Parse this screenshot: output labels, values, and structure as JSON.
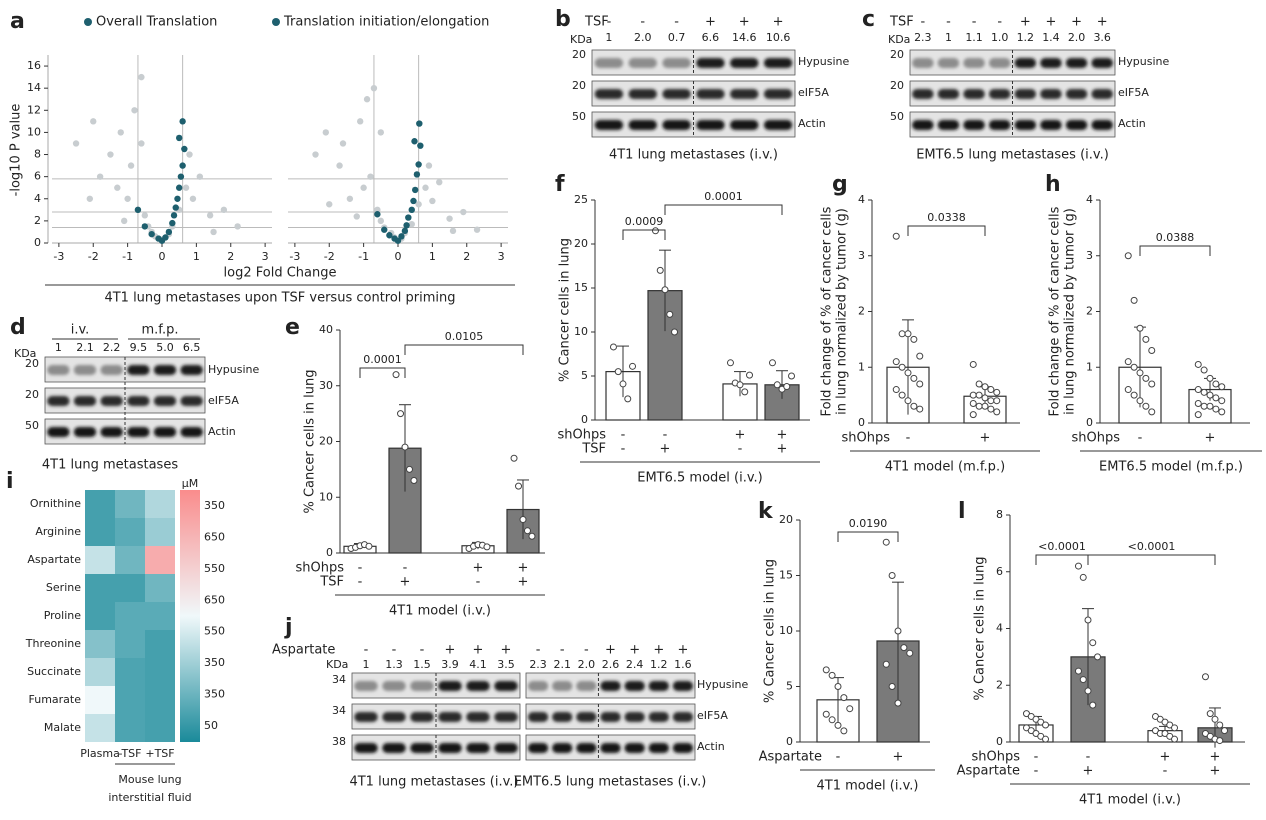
{
  "panel_a": {
    "label": "a",
    "legend": [
      "Overall Translation",
      "Translation initiation/elongation"
    ],
    "colors": [
      "#1e5f6e",
      "#c8cdd0"
    ],
    "ylabel": "-log10 P value",
    "xlabel": "log2 Fold Change",
    "caption": "4T1 lung metastases upon TSF versus control priming",
    "xlim": [
      -3.2,
      3.2
    ],
    "ylim": [
      0,
      17
    ],
    "xticks": [
      -3,
      -2,
      -1,
      0,
      1,
      2,
      3
    ],
    "yticks": [
      0,
      2,
      4,
      6,
      8,
      10,
      12,
      14,
      16
    ],
    "threshold_x": [
      -0.7,
      0.6
    ],
    "threshold_y": [
      5.8,
      2.8,
      1.4
    ],
    "plots": [
      {
        "gray": {
          "x": [
            -2.5,
            -2,
            -1.8,
            -1.5,
            -1.3,
            -1.2,
            -1,
            -0.9,
            -0.8,
            -0.7,
            -0.6,
            -0.5,
            -0.4,
            -0.3,
            -0.2,
            0,
            0.2,
            0.3,
            0.5,
            0.7,
            0.9,
            1.1,
            1.4,
            1.8,
            2.2,
            -1.1,
            -0.6,
            0.8,
            -2.1,
            1.5
          ],
          "y": [
            9,
            11,
            6,
            8,
            5,
            10,
            4,
            7,
            12,
            3,
            15,
            2.5,
            1.5,
            1,
            0.6,
            0.3,
            0.8,
            1.5,
            3,
            5,
            4,
            6,
            2.5,
            3,
            1.5,
            2,
            9,
            8,
            4,
            1
          ]
        },
        "teal": {
          "x": [
            -0.5,
            -0.3,
            -0.1,
            0,
            0.1,
            0.2,
            0.3,
            0.35,
            0.4,
            0.45,
            0.5,
            0.55,
            0.6,
            0.65,
            0.6,
            0.5,
            -0.7
          ],
          "y": [
            1.5,
            0.8,
            0.4,
            0.2,
            0.5,
            1,
            1.8,
            2.5,
            3.2,
            4,
            5,
            6,
            7,
            8.5,
            11,
            9.5,
            3
          ]
        }
      },
      {
        "gray": {
          "x": [
            -2.4,
            -2.1,
            -1.7,
            -1.6,
            -1.4,
            -1.1,
            -1,
            -0.8,
            -0.9,
            -0.6,
            -0.7,
            -0.5,
            -0.4,
            -0.2,
            -0.1,
            0.1,
            0.2,
            0.4,
            0.6,
            0.8,
            1,
            1.2,
            1.5,
            1.9,
            2.3,
            -1.2,
            -0.5,
            0.9,
            -2,
            1.6
          ],
          "y": [
            8,
            10,
            7,
            9,
            4,
            11,
            5,
            6,
            13,
            3,
            14,
            2,
            1.4,
            0.9,
            0.5,
            0.4,
            0.9,
            1.7,
            3.5,
            5,
            3.8,
            5.5,
            2.2,
            2.8,
            1.2,
            2.4,
            10,
            7,
            3.5,
            1.1
          ]
        },
        "teal": {
          "x": [
            -0.4,
            -0.25,
            -0.1,
            0,
            0.1,
            0.2,
            0.25,
            0.3,
            0.4,
            0.45,
            0.5,
            0.55,
            0.6,
            0.65,
            0.62,
            0.48,
            -0.6
          ],
          "y": [
            1.2,
            0.7,
            0.4,
            0.2,
            0.6,
            1.1,
            1.6,
            2.3,
            3,
            3.8,
            4.8,
            6.2,
            7.1,
            8.8,
            10.8,
            9.2,
            2.6
          ]
        }
      }
    ]
  },
  "panel_b": {
    "label": "b",
    "treatment": "TSF",
    "kda": "KDa",
    "signs": [
      "-",
      "-",
      "-",
      "+",
      "+",
      "+"
    ],
    "values": [
      "1",
      "2.0",
      "0.7",
      "6.6",
      "14.6",
      "10.6"
    ],
    "markers": [
      "20",
      "20",
      "50"
    ],
    "bands": [
      "Hypusine",
      "eIF5A",
      "Actin"
    ],
    "caption": "4T1 lung metastases (i.v.)"
  },
  "panel_c": {
    "label": "c",
    "treatment": "TSF",
    "kda": "KDa",
    "signs": [
      "-",
      "-",
      "-",
      "-",
      "+",
      "+",
      "+",
      "+"
    ],
    "values": [
      "2.3",
      "1",
      "1.1",
      "1.0",
      "1.2",
      "1.4",
      "2.0",
      "3.6"
    ],
    "markers": [
      "20",
      "20",
      "50"
    ],
    "bands": [
      "Hypusine",
      "eIF5A",
      "Actin"
    ],
    "caption": "EMT6.5 lung metastases (i.v.)"
  },
  "panel_d": {
    "label": "d",
    "groups": [
      "i.v.",
      "m.f.p."
    ],
    "kda": "KDa",
    "values": [
      "1",
      "2.1",
      "2.2",
      "9.5",
      "5.0",
      "6.5"
    ],
    "markers": [
      "20",
      "20",
      "50"
    ],
    "bands": [
      "Hypusine",
      "eIF5A",
      "Actin"
    ],
    "caption": "4T1 lung metastases"
  },
  "panel_e": {
    "label": "e",
    "ylabel": [
      "% Cancer cells in lung"
    ],
    "ylim": [
      0,
      40
    ],
    "yticks": [
      0,
      10,
      20,
      30,
      40
    ],
    "values": [
      1.2,
      18.8,
      1.3,
      7.8
    ],
    "errors": [
      0.5,
      7.8,
      0.6,
      5.3
    ],
    "fills": [
      "#ffffff",
      "#7a7a7a",
      "#ffffff",
      "#7a7a7a"
    ],
    "points": [
      [
        0.8,
        1,
        1.3,
        1.5,
        1.2
      ],
      [
        32,
        25,
        19,
        15,
        13
      ],
      [
        0.8,
        1.2,
        1.5,
        1.4,
        1.1
      ],
      [
        17,
        12,
        6,
        4,
        3
      ]
    ],
    "annotations": [
      "0.0001",
      "0.0105"
    ],
    "rows": [
      {
        "name": "shOhps",
        "signs": [
          "-",
          "-",
          "+",
          "+"
        ]
      },
      {
        "name": "TSF",
        "signs": [
          "-",
          "+",
          "-",
          "+"
        ]
      }
    ],
    "caption": "4T1 model (i.v.)"
  },
  "panel_f": {
    "label": "f",
    "ylabel": [
      "% Cancer cells in lung"
    ],
    "ylim": [
      0,
      25
    ],
    "yticks": [
      0,
      5,
      10,
      15,
      20,
      25
    ],
    "values": [
      5.5,
      14.7,
      4.1,
      4.0
    ],
    "errors": [
      2.9,
      4.6,
      1.4,
      1.6
    ],
    "fills": [
      "#ffffff",
      "#7a7a7a",
      "#ffffff",
      "#7a7a7a"
    ],
    "points": [
      [
        8.3,
        5.5,
        4.1,
        2.4,
        6.1
      ],
      [
        21.5,
        17,
        14.8,
        12,
        10
      ],
      [
        6.5,
        4.2,
        4.0,
        3.2,
        5.1
      ],
      [
        6.5,
        4.0,
        3.5,
        3.8,
        5.0
      ]
    ],
    "annotations": [
      "0.0009",
      "0.0001"
    ],
    "rows": [
      {
        "name": "shOhps",
        "signs": [
          "-",
          "-",
          "+",
          "+"
        ]
      },
      {
        "name": "TSF",
        "signs": [
          "-",
          "+",
          "-",
          "+"
        ]
      }
    ],
    "caption": "EMT6.5 model (i.v.)"
  },
  "panel_g": {
    "label": "g",
    "ylabel": [
      "Fold change of % of cancer cells",
      "in lung normalized by tumor (g)"
    ],
    "ylim": [
      0,
      4
    ],
    "yticks": [
      0,
      1,
      2,
      3,
      4
    ],
    "values": [
      1.0,
      0.48
    ],
    "errors": [
      0.85,
      0.17
    ],
    "fills": [
      "#ffffff",
      "#ffffff"
    ],
    "points": [
      [
        3.35,
        1.6,
        1.6,
        1.5,
        1.2,
        1.1,
        1.0,
        0.9,
        0.8,
        0.7,
        0.6,
        0.5,
        0.4,
        0.3,
        0.25
      ],
      [
        1.05,
        0.7,
        0.65,
        0.6,
        0.55,
        0.5,
        0.5,
        0.45,
        0.4,
        0.4,
        0.35,
        0.3,
        0.3,
        0.25,
        0.2,
        0.15
      ]
    ],
    "annotations": [
      "0.0338"
    ],
    "rows": [
      {
        "name": "shOhps",
        "signs": [
          "-",
          "+"
        ]
      }
    ],
    "caption": "4T1 model (m.f.p.)"
  },
  "panel_h": {
    "label": "h",
    "ylabel": [
      "Fold change of % of cancer cells",
      "in lung normalized by tumor (g)"
    ],
    "ylim": [
      0,
      4
    ],
    "yticks": [
      0,
      1,
      2,
      3,
      4
    ],
    "values": [
      1.0,
      0.6
    ],
    "errors": [
      0.72,
      0.2
    ],
    "fills": [
      "#ffffff",
      "#ffffff"
    ],
    "points": [
      [
        3.0,
        2.2,
        1.7,
        1.5,
        1.3,
        1.1,
        1.0,
        0.9,
        0.8,
        0.7,
        0.6,
        0.5,
        0.4,
        0.3,
        0.2
      ],
      [
        1.05,
        0.95,
        0.8,
        0.7,
        0.65,
        0.6,
        0.55,
        0.5,
        0.45,
        0.4,
        0.35,
        0.3,
        0.3,
        0.25,
        0.2,
        0.15
      ]
    ],
    "annotations": [
      "0.0388"
    ],
    "rows": [
      {
        "name": "shOhps",
        "signs": [
          "-",
          "+"
        ]
      }
    ],
    "caption": "EMT6.5 model (m.f.p.)"
  },
  "panel_i": {
    "label": "i",
    "unit": "µM",
    "rows": [
      "Ornithine",
      "Arginine",
      "Aspartate",
      "Serine",
      "Proline",
      "Threonine",
      "Succinate",
      "Fumarate",
      "Malate"
    ],
    "columns": [
      "Plasma",
      "-TSF",
      "+TSF"
    ],
    "column_group": [
      "Mouse lung",
      "interstitial fluid"
    ],
    "clim": [
      0,
      1
    ],
    "values": [
      [
        0.1,
        0.2,
        0.35
      ],
      [
        0.1,
        0.15,
        0.3
      ],
      [
        0.4,
        0.2,
        0.85
      ],
      [
        0.1,
        0.1,
        0.2
      ],
      [
        0.1,
        0.15,
        0.15
      ],
      [
        0.25,
        0.15,
        0.1
      ],
      [
        0.35,
        0.12,
        0.1
      ],
      [
        0.5,
        0.12,
        0.1
      ],
      [
        0.4,
        0.12,
        0.1
      ]
    ],
    "colorbar_labels": [
      "350",
      "650",
      "550",
      "650",
      "550",
      "350",
      "350",
      "50"
    ]
  },
  "panel_j": {
    "label": "j",
    "treatment": "Aspartate",
    "kda": "KDa",
    "markers": [
      "34",
      "34",
      "38"
    ],
    "bands": [
      "Hypusine",
      "eIF5A",
      "Actin"
    ],
    "blots": [
      {
        "signs": [
          "-",
          "-",
          "-",
          "+",
          "+",
          "+"
        ],
        "values": [
          "1",
          "1.3",
          "1.5",
          "3.9",
          "4.1",
          "3.5"
        ],
        "caption": "4T1 lung metastases (i.v.)"
      },
      {
        "signs": [
          "-",
          "-",
          "-",
          "+",
          "+",
          "+",
          "+"
        ],
        "values": [
          "2.3",
          "2.1",
          "2.0",
          "2.6",
          "2.4",
          "1.2",
          "1.6"
        ],
        "caption": "EMT6.5 lung metastases (i.v.)"
      }
    ]
  },
  "panel_k": {
    "label": "k",
    "ylabel": [
      "% Cancer cells in lung"
    ],
    "ylim": [
      0,
      20
    ],
    "yticks": [
      0,
      5,
      10,
      15,
      20
    ],
    "values": [
      3.8,
      9.1
    ],
    "errors": [
      2.0,
      5.3
    ],
    "fills": [
      "#ffffff",
      "#7a7a7a"
    ],
    "points": [
      [
        6.5,
        6,
        5,
        4,
        3,
        2.5,
        2,
        1.5,
        1
      ],
      [
        18,
        15,
        10,
        8.5,
        8,
        7,
        5,
        3.5
      ]
    ],
    "annotations": [
      "0.0190"
    ],
    "rows": [
      {
        "name": "Aspartate",
        "signs": [
          "-",
          "+"
        ]
      }
    ],
    "caption": "4T1 model (i.v.)"
  },
  "panel_l": {
    "label": "l",
    "ylabel": [
      "% Cancer cells in lung"
    ],
    "ylim": [
      0,
      8
    ],
    "yticks": [
      0,
      2,
      4,
      6,
      8
    ],
    "values": [
      0.6,
      3.0,
      0.4,
      0.5
    ],
    "errors": [
      0.3,
      1.7,
      0.15,
      0.7
    ],
    "fills": [
      "#ffffff",
      "#7a7a7a",
      "#ffffff",
      "#7a7a7a"
    ],
    "points": [
      [
        1.0,
        0.9,
        0.8,
        0.7,
        0.6,
        0.5,
        0.4,
        0.3,
        0.2,
        0.1
      ],
      [
        6.2,
        5.8,
        4.3,
        3.5,
        3.0,
        2.5,
        2.2,
        1.8,
        1.3
      ],
      [
        0.9,
        0.8,
        0.7,
        0.6,
        0.5,
        0.4,
        0.3,
        0.3,
        0.2,
        0.1
      ],
      [
        2.3,
        1.0,
        0.8,
        0.6,
        0.4,
        0.3,
        0.2,
        0.1,
        0.05
      ]
    ],
    "annotations": [
      "<0.0001",
      "<0.0001"
    ],
    "rows": [
      {
        "name": "shOhps",
        "signs": [
          "-",
          "-",
          "+",
          "+"
        ]
      },
      {
        "name": "Aspartate",
        "signs": [
          "-",
          "+",
          "-",
          "+"
        ]
      }
    ],
    "caption": "4T1 model (i.v.)"
  }
}
